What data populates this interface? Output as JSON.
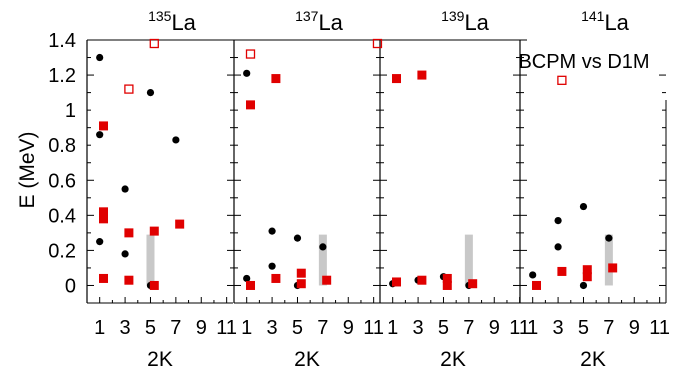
{
  "chart_data": {
    "type": "scatter",
    "ylabel": "E (MeV)",
    "ylim": [
      -0.1,
      1.4
    ],
    "yticks": [
      0,
      0.2,
      0.4,
      0.6,
      0.8,
      1,
      1.2,
      1.4
    ],
    "ytick_labels": [
      "0",
      "0.2",
      "0.4",
      "0.6",
      "0.8",
      "1",
      "1.2",
      "1.4"
    ],
    "xlim": [
      0,
      11.5
    ],
    "xticks": [
      1,
      3,
      5,
      7,
      9,
      11
    ],
    "xtick_labels": [
      "1",
      "3",
      "5",
      "7",
      "9",
      "11"
    ],
    "annotation": "BCPM vs D1M",
    "colors": {
      "BCPM": "#000000",
      "D1M": "#e00000",
      "gray_bar": "#c8c8c8"
    },
    "panels": [
      {
        "title_mass": "135",
        "title_element": "La",
        "xlabel": "2K",
        "BCPM": [
          [
            1,
            1.3
          ],
          [
            1,
            0.86
          ],
          [
            1,
            0.25
          ],
          [
            3,
            0.55
          ],
          [
            3,
            0.18
          ],
          [
            5,
            1.1
          ],
          [
            5,
            0.0
          ],
          [
            7,
            0.83
          ]
        ],
        "D1M": [
          [
            1.3,
            0.91
          ],
          [
            1.3,
            0.42
          ],
          [
            1.3,
            0.38
          ],
          [
            1.3,
            0.04
          ],
          [
            3.3,
            0.3
          ],
          [
            3.3,
            0.03
          ],
          [
            5.3,
            0.31
          ],
          [
            5.3,
            0.0
          ],
          [
            7.3,
            0.35
          ]
        ],
        "D1M_open": [
          [
            3.3,
            1.12
          ],
          [
            5.3,
            1.38
          ]
        ],
        "gray_bar": {
          "x": 5,
          "low": 0.0,
          "high": 0.29
        }
      },
      {
        "title_mass": "137",
        "title_element": "La",
        "xlabel": "2K",
        "BCPM": [
          [
            1,
            1.21
          ],
          [
            1,
            0.04
          ],
          [
            3,
            0.31
          ],
          [
            3,
            0.11
          ],
          [
            5,
            0.27
          ],
          [
            5,
            0.0
          ],
          [
            7,
            0.22
          ]
        ],
        "D1M": [
          [
            1.3,
            1.03
          ],
          [
            1.3,
            0.0
          ],
          [
            3.3,
            1.18
          ],
          [
            3.3,
            0.04
          ],
          [
            5.3,
            0.07
          ],
          [
            5.3,
            0.01
          ],
          [
            7.3,
            0.03
          ]
        ],
        "D1M_open": [
          [
            1.3,
            1.32
          ],
          [
            11.3,
            1.38
          ]
        ],
        "gray_bar": {
          "x": 7,
          "low": 0.0,
          "high": 0.29
        }
      },
      {
        "title_mass": "139",
        "title_element": "La",
        "xlabel": "2K",
        "BCPM": [
          [
            1,
            0.01
          ],
          [
            3,
            0.03
          ],
          [
            5,
            0.05
          ],
          [
            7,
            0.0
          ]
        ],
        "D1M": [
          [
            1.3,
            1.18
          ],
          [
            1.3,
            0.02
          ],
          [
            3.3,
            1.2
          ],
          [
            3.3,
            0.03
          ],
          [
            5.3,
            0.04
          ],
          [
            5.3,
            0.0
          ],
          [
            7.3,
            0.01
          ]
        ],
        "D1M_open": [],
        "gray_bar": {
          "x": 7,
          "low": 0.0,
          "high": 0.29
        }
      },
      {
        "title_mass": "141",
        "title_element": "La",
        "xlabel": "2K",
        "BCPM": [
          [
            1,
            0.06
          ],
          [
            3,
            0.37
          ],
          [
            3,
            0.22
          ],
          [
            5,
            0.45
          ],
          [
            5,
            0.0
          ],
          [
            7,
            0.27
          ]
        ],
        "D1M": [
          [
            1.3,
            0.0
          ],
          [
            3.3,
            0.08
          ],
          [
            5.3,
            0.09
          ],
          [
            5.3,
            0.05
          ],
          [
            7.3,
            0.1
          ]
        ],
        "D1M_open": [
          [
            3.3,
            1.17
          ]
        ],
        "gray_bar": {
          "x": 7,
          "low": 0.0,
          "high": 0.29
        }
      }
    ]
  }
}
